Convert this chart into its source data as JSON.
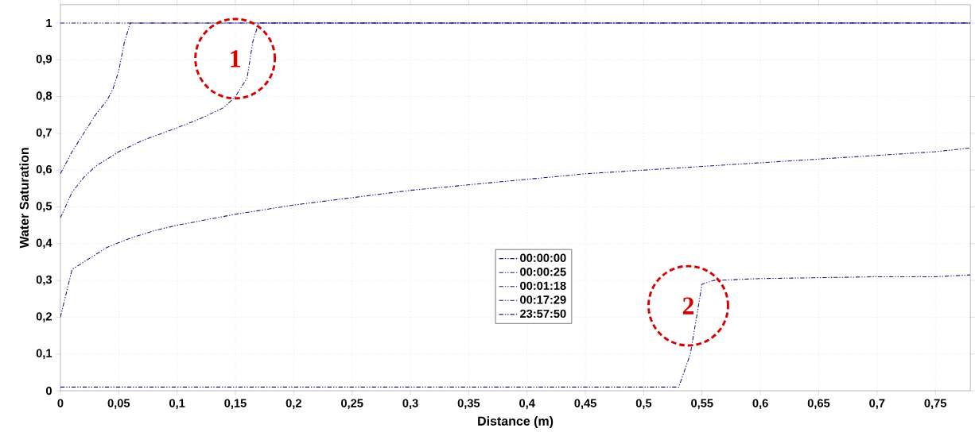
{
  "chart_data": {
    "type": "line",
    "xlabel": "Distance (m)",
    "ylabel": "Water Saturation",
    "xlim": [
      0,
      0.78
    ],
    "ylim": [
      0,
      1.05
    ],
    "xticks": [
      0,
      {
        "value": 0.05,
        "label": "0,05"
      },
      {
        "value": 0.1,
        "label": "0,1"
      },
      {
        "value": 0.15,
        "label": "0,15"
      },
      {
        "value": 0.2,
        "label": "0,2"
      },
      {
        "value": 0.25,
        "label": "0,25"
      },
      {
        "value": 0.3,
        "label": "0,3"
      },
      {
        "value": 0.35,
        "label": "0,35"
      },
      {
        "value": 0.4,
        "label": "0,4"
      },
      {
        "value": 0.45,
        "label": "0,45"
      },
      {
        "value": 0.5,
        "label": "0,5"
      },
      {
        "value": 0.55,
        "label": "0,55"
      },
      {
        "value": 0.6,
        "label": "0,6"
      },
      {
        "value": 0.65,
        "label": "0,65"
      },
      {
        "value": 0.7,
        "label": "0,7"
      },
      {
        "value": 0.75,
        "label": "0,75"
      }
    ],
    "yticks": [
      0,
      {
        "value": 0.1,
        "label": "0,1"
      },
      {
        "value": 0.2,
        "label": "0,2"
      },
      {
        "value": 0.3,
        "label": "0,3"
      },
      {
        "value": 0.4,
        "label": "0,4"
      },
      {
        "value": 0.5,
        "label": "0,5"
      },
      {
        "value": 0.6,
        "label": "0,6"
      },
      {
        "value": 0.7,
        "label": "0,7"
      },
      {
        "value": 0.8,
        "label": "0,8"
      },
      {
        "value": 0.9,
        "label": "0,9"
      },
      1
    ],
    "grid": true,
    "legend": "center",
    "line_style": "dashed",
    "marker": "none",
    "series": [
      {
        "name": "00:00:00",
        "color": "#1a1a80",
        "x": [
          0,
          0.78
        ],
        "values": [
          1,
          1
        ]
      },
      {
        "name": "00:00:25",
        "color": "#1a1a80",
        "x": [
          0,
          0.01,
          0.02,
          0.03,
          0.04,
          0.045,
          0.05,
          0.055,
          0.06,
          0.78
        ],
        "values": [
          0.59,
          0.65,
          0.7,
          0.75,
          0.79,
          0.82,
          0.87,
          0.95,
          1,
          1
        ]
      },
      {
        "name": "00:01:18",
        "color": "#1a1a80",
        "x": [
          0,
          0.01,
          0.02,
          0.03,
          0.05,
          0.07,
          0.1,
          0.12,
          0.14,
          0.15,
          0.16,
          0.165,
          0.17,
          0.78
        ],
        "values": [
          0.47,
          0.54,
          0.58,
          0.61,
          0.65,
          0.68,
          0.715,
          0.74,
          0.77,
          0.8,
          0.85,
          0.95,
          1,
          1
        ]
      },
      {
        "name": "00:17:29",
        "color": "#1a1a80",
        "x": [
          0,
          0.01,
          0.02,
          0.04,
          0.06,
          0.08,
          0.1,
          0.15,
          0.2,
          0.25,
          0.3,
          0.35,
          0.4,
          0.45,
          0.5,
          0.55,
          0.6,
          0.65,
          0.7,
          0.75,
          0.78
        ],
        "values": [
          0.2,
          0.33,
          0.35,
          0.39,
          0.415,
          0.435,
          0.45,
          0.48,
          0.505,
          0.525,
          0.545,
          0.56,
          0.575,
          0.59,
          0.6,
          0.61,
          0.62,
          0.63,
          0.64,
          0.65,
          0.66
        ]
      },
      {
        "name": "23:57:50",
        "color": "#1a1a80",
        "x": [
          0,
          0.53,
          0.54,
          0.55,
          0.56,
          0.6,
          0.7,
          0.75,
          0.78
        ],
        "values": [
          0.01,
          0.01,
          0.1,
          0.29,
          0.3,
          0.305,
          0.31,
          0.31,
          0.315
        ]
      }
    ],
    "annotations": [
      "1",
      "2"
    ]
  }
}
